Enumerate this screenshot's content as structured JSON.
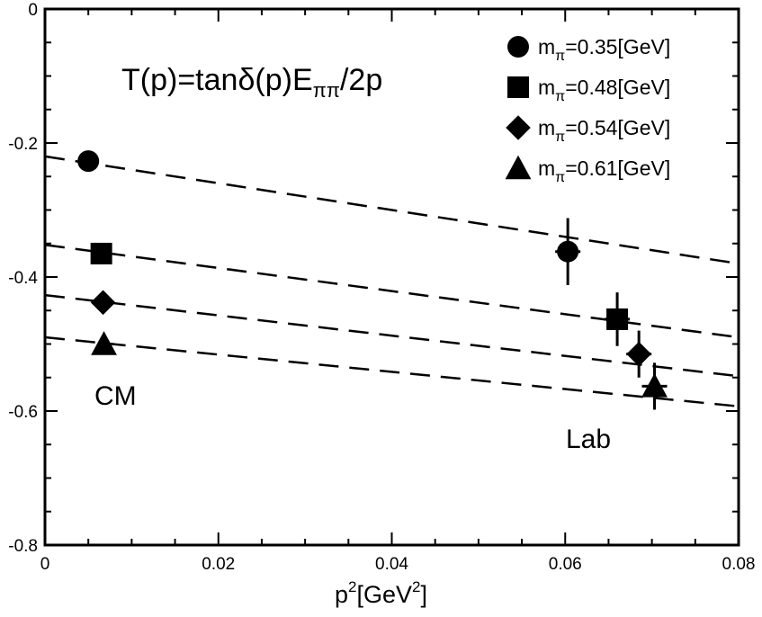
{
  "chart_data": {
    "type": "scatter",
    "title": "",
    "formula": {
      "prefix": "T(p)=tan",
      "delta": "δ",
      "mid": "(p)E",
      "sub": "ππ",
      "suffix": "/2p"
    },
    "xlabel": {
      "base": "p",
      "sup1": "2",
      "mid": "[GeV",
      "sup2": "2",
      "end": "]"
    },
    "ylabel": "",
    "xlim": [
      0,
      0.08
    ],
    "ylim": [
      -0.8,
      0
    ],
    "xticks": [
      0,
      0.02,
      0.04,
      0.06,
      0.08
    ],
    "xtick_labels": [
      "0",
      "0.02",
      "0.04",
      "0.06",
      "0.08"
    ],
    "yticks": [
      0,
      -0.2,
      -0.4,
      -0.6,
      -0.8
    ],
    "ytick_labels": [
      "0",
      "-0.2",
      "-0.4",
      "-0.6",
      "-0.8"
    ],
    "legend_position": "top-right",
    "annotations": {
      "cm": "CM",
      "lab": "Lab"
    },
    "series": [
      {
        "name": "mπ=0.35[GeV]",
        "legend": {
          "m": "m",
          "sub": "π",
          "rest": "=0.35[GeV]"
        },
        "marker": "circle",
        "points": [
          {
            "x": 0.005,
            "y": -0.227,
            "err": 0.0
          },
          {
            "x": 0.0603,
            "y": -0.362,
            "err": 0.05
          }
        ],
        "fit_line": [
          [
            0.0,
            -0.22
          ],
          [
            0.08,
            -0.38
          ]
        ]
      },
      {
        "name": "mπ=0.48[GeV]",
        "legend": {
          "m": "m",
          "sub": "π",
          "rest": "=0.48[GeV]"
        },
        "marker": "square",
        "points": [
          {
            "x": 0.0065,
            "y": -0.365,
            "err": 0.0
          },
          {
            "x": 0.066,
            "y": -0.463,
            "err": 0.04
          }
        ],
        "fit_line": [
          [
            0.0,
            -0.352
          ],
          [
            0.08,
            -0.49
          ]
        ]
      },
      {
        "name": "mπ=0.54[GeV]",
        "legend": {
          "m": "m",
          "sub": "π",
          "rest": "=0.54[GeV]"
        },
        "marker": "diamond",
        "points": [
          {
            "x": 0.0067,
            "y": -0.438,
            "err": 0.0
          },
          {
            "x": 0.0685,
            "y": -0.515,
            "err": 0.035
          }
        ],
        "fit_line": [
          [
            0.0,
            -0.427
          ],
          [
            0.08,
            -0.548
          ]
        ]
      },
      {
        "name": "mπ=0.61[GeV]",
        "legend": {
          "m": "m",
          "sub": "π",
          "rest": "=0.61[GeV]"
        },
        "marker": "triangle",
        "points": [
          {
            "x": 0.0068,
            "y": -0.5,
            "err": 0.0
          },
          {
            "x": 0.0703,
            "y": -0.563,
            "err": 0.035
          }
        ],
        "fit_line": [
          [
            0.0,
            -0.49
          ],
          [
            0.08,
            -0.593
          ]
        ]
      }
    ]
  }
}
